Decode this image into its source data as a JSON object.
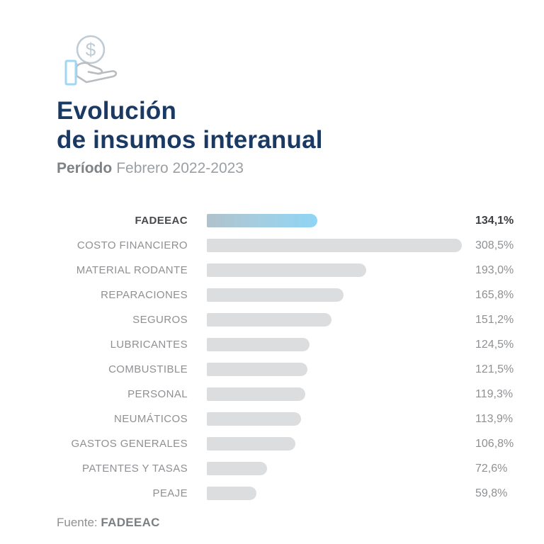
{
  "header": {
    "icon": "hand-coin-icon",
    "title_line1": "Evolución",
    "title_line2": "de insumos interanual",
    "period_label": "Período",
    "period_value": "Febrero 2022-2023"
  },
  "chart_data": {
    "type": "bar",
    "orientation": "horizontal",
    "title": "Evolución de insumos interanual",
    "subtitle": "Período Febrero 2022-2023",
    "categories": [
      "FADEEAC",
      "COSTO FINANCIERO",
      "MATERIAL RODANTE",
      "REPARACIONES",
      "SEGUROS",
      "LUBRICANTES",
      "COMBUSTIBLE",
      "PERSONAL",
      "NEUMÁTICOS",
      "GASTOS GENERALES",
      "PATENTES Y TASAS",
      "PEAJE"
    ],
    "values": [
      134.1,
      308.5,
      193.0,
      165.8,
      151.2,
      124.5,
      121.5,
      119.3,
      113.9,
      106.8,
      72.6,
      59.8
    ],
    "value_labels": [
      "134,1%",
      "308,5%",
      "193,0%",
      "165,8%",
      "151,2%",
      "124,5%",
      "121,5%",
      "119,3%",
      "113,9%",
      "106,8%",
      "72,6%",
      "59,8%"
    ],
    "highlight_index": 0,
    "xlim": [
      0,
      308.5
    ],
    "grid": false,
    "legend": false,
    "colors": {
      "bar": "#dcddde",
      "highlight_gradient_start": "#b0c1cb",
      "highlight_gradient_end": "#8fd5f4",
      "title": "#1a3a64",
      "label": "#8e9093",
      "highlight_text": "#3d3f42"
    }
  },
  "footer": {
    "source_label": "Fuente:",
    "source_value": "FADEEAC"
  }
}
